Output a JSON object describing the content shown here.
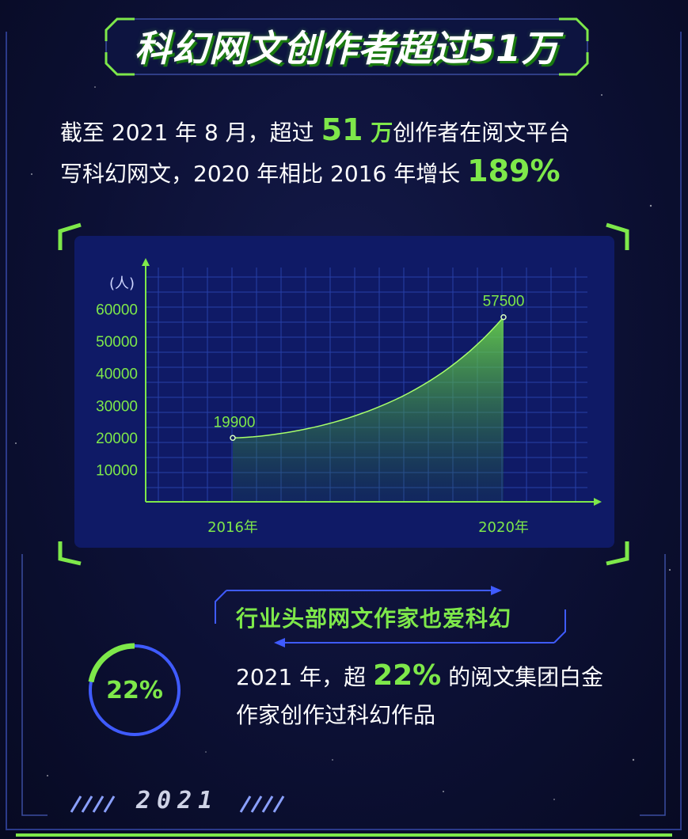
{
  "title": "科幻网文创作者超过51万",
  "intro": {
    "line1_pre": "截至 2021 年 8 月，超过 ",
    "line1_highlight": "51",
    "line1_unit": " 万",
    "line1_post": "创作者在阅文平台",
    "line2_pre": "写科幻网文，2020 年相比 2016 年增长 ",
    "line2_highlight": "189%"
  },
  "chart_data": {
    "type": "area",
    "x": [
      "2016年",
      "2020年"
    ],
    "points": [
      {
        "x": "2016年",
        "y": 19900,
        "label": "19900"
      },
      {
        "x": "2020年",
        "y": 57500,
        "label": "57500"
      }
    ],
    "ylabel": "(人)",
    "yticks": [
      10000,
      20000,
      30000,
      40000,
      50000,
      60000
    ],
    "ytick_labels": [
      "10000",
      "20000",
      "30000",
      "40000",
      "50000",
      "60000"
    ],
    "ylim": [
      0,
      70000
    ],
    "curve": "exponential",
    "grid": true
  },
  "section2": {
    "title": "行业头部网文作家也爱科幻",
    "ring_label": "22%",
    "ring_value": 0.22,
    "text_pre": "2021 年，超 ",
    "text_highlight": "22%",
    "text_post_line1": " 的阅文集团白金",
    "text_line2": "作家创作过科幻作品"
  },
  "footer": {
    "year": "2021",
    "slashes": "////"
  },
  "colors": {
    "accent_green": "#7ee84a",
    "accent_blue": "#3f5bff",
    "background": "#0b0f2e",
    "panel": "#0f1a66"
  }
}
